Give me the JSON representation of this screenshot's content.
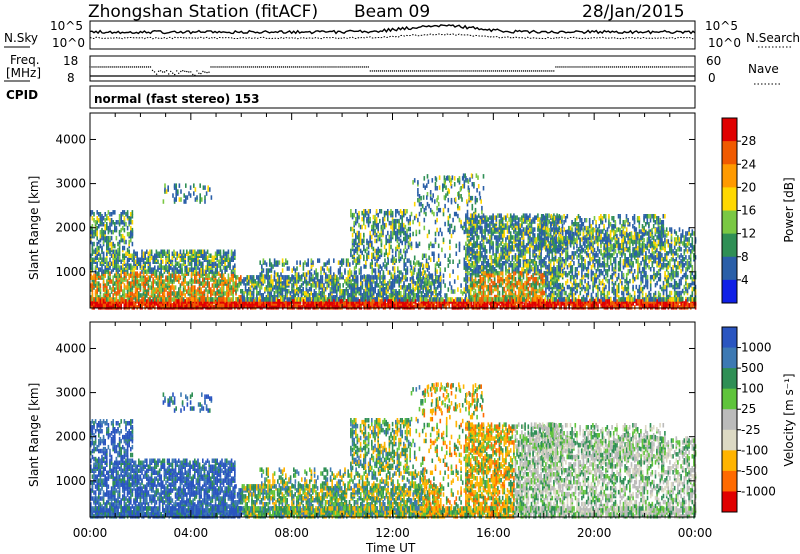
{
  "header": {
    "title": "Zhongshan Station (fitACF)",
    "beam": "Beam 09",
    "date": "28/Jan/2015"
  },
  "top_panel": {
    "left_label": "N.Sky",
    "left_ticks": [
      "10^5",
      "10^0"
    ],
    "right_label": "N.Search",
    "right_ticks": [
      "10^5",
      "10^0"
    ]
  },
  "freq_panel": {
    "left_label_1": "Freq.",
    "left_label_2": "[MHz]",
    "left_ticks": [
      "18",
      "8"
    ],
    "right_label": "Nave",
    "right_ticks": [
      "60",
      "0"
    ],
    "cpid_label": "CPID",
    "cpid_text": "normal (fast stereo) 153"
  },
  "chart_data": [
    {
      "type": "heatmap",
      "name": "power",
      "ylabel": "Slant Range [km]",
      "yticks": [
        "4000",
        "3000",
        "2000",
        "1000"
      ],
      "ylim": [
        180,
        4600
      ],
      "x_ticks": [
        "00:00",
        "04:00",
        "08:00",
        "12:00",
        "16:00",
        "20:00",
        "00:00"
      ],
      "colorbar": {
        "label": "Power [dB]",
        "ticks": [
          "28",
          "24",
          "20",
          "16",
          "12",
          "8",
          "4"
        ],
        "colors": [
          "#e00000",
          "#f05a00",
          "#ff9a00",
          "#ffd800",
          "#7ac843",
          "#2f8f55",
          "#2a5fa8",
          "#1020e6"
        ]
      }
    },
    {
      "type": "heatmap",
      "name": "velocity",
      "ylabel": "Slant Range [km]",
      "yticks": [
        "4000",
        "3000",
        "2000",
        "1000"
      ],
      "ylim": [
        180,
        4600
      ],
      "x_ticks": [
        "00:00",
        "04:00",
        "08:00",
        "12:00",
        "16:00",
        "20:00",
        "00:00"
      ],
      "xlabel": "Time UT",
      "colorbar": {
        "label": "Velocity [m s⁻¹]",
        "ticks": [
          "1000",
          "500",
          "100",
          "25",
          "-25",
          "-100",
          "-500",
          "-1000"
        ],
        "colors": [
          "#2a55c0",
          "#3d79b3",
          "#2f8f55",
          "#5fc43b",
          "#bbbbbb",
          "#dcd9c4",
          "#ffb400",
          "#ff6a00",
          "#e00000"
        ]
      }
    }
  ]
}
